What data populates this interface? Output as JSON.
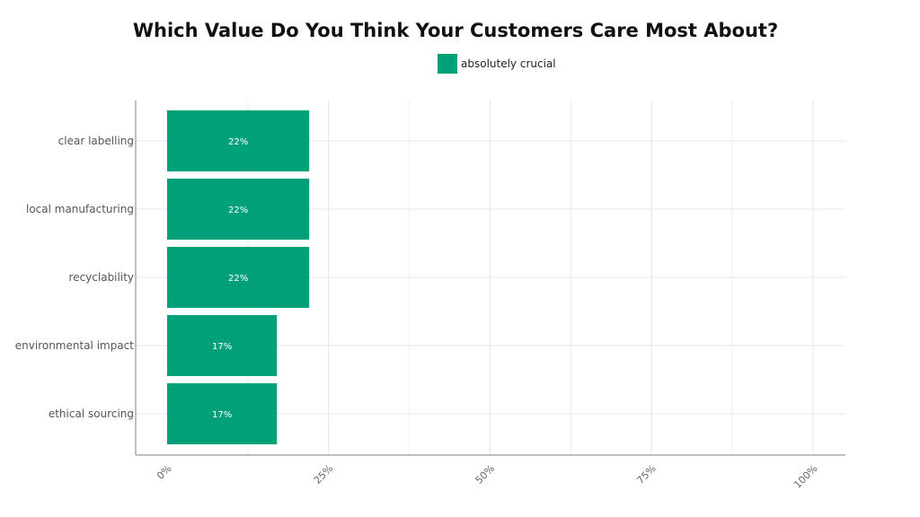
{
  "chart_data": {
    "type": "bar",
    "orientation": "horizontal",
    "title": "Which Value Do You Think Your Customers Care Most About?",
    "categories": [
      "clear labelling",
      "local manufacturing",
      "recyclability",
      "environmental impact",
      "ethical sourcing"
    ],
    "series": [
      {
        "name": "absolutely crucial",
        "values": [
          22,
          22,
          22,
          17,
          17
        ],
        "labels": [
          "22%",
          "22%",
          "22%",
          "17%",
          "17%"
        ],
        "color": "#00a07a"
      }
    ],
    "xlim": [
      0,
      100
    ],
    "x_ticks": [
      0,
      25,
      50,
      75,
      100
    ],
    "x_tick_labels": [
      "0%",
      "25%",
      "50%",
      "75%",
      "100%"
    ],
    "xlabel": "",
    "ylabel": "",
    "grid": true,
    "legend_position": "top"
  }
}
